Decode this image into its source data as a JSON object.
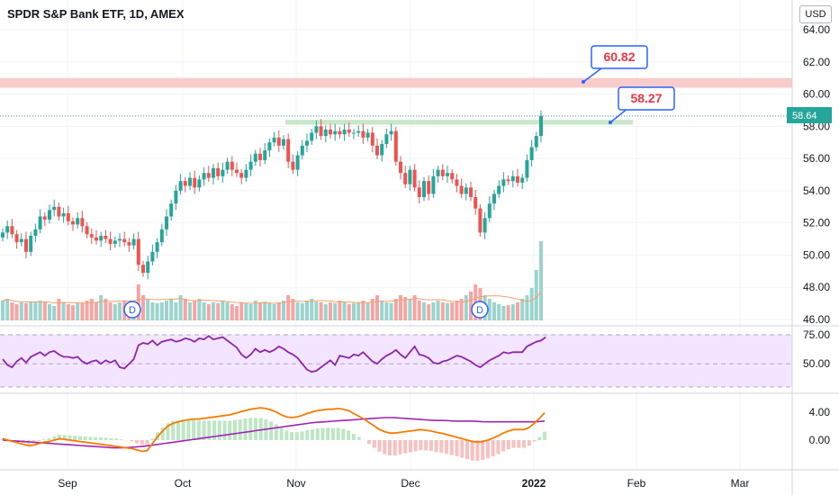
{
  "header": {
    "title": "SPDR S&P Bank ETF, 1D, AMEX",
    "currency_button": "USD"
  },
  "annotations": {
    "resistance_label": "60.82",
    "target_label": "58.27",
    "last_price_label": "58.64",
    "dividend_marker": "D"
  },
  "colors": {
    "up": "#26a69a",
    "down": "#ef5350",
    "resistance_band": "#f9cccc",
    "support_band": "#c8e6c9",
    "rsi_band": "#f3e5ff",
    "rsi_line": "#8e24aa",
    "macd_line": "#f57c00",
    "signal_line": "#9c27b0",
    "callout_border": "#2962ff",
    "callout_text": "#f23645"
  },
  "chart_data": [
    {
      "type": "candlestick",
      "x_labels": [
        "Sep",
        "Oct",
        "Nov",
        "Dec",
        "2022",
        "Feb",
        "Mar"
      ],
      "y_ticks": [
        "64.00",
        "62.00",
        "60.00",
        "58.00",
        "56.00",
        "54.00",
        "52.00",
        "50.00",
        "48.00",
        "46.00"
      ],
      "ylim": [
        46,
        65
      ],
      "closes": [
        51.4,
        51.8,
        51.3,
        50.8,
        51.0,
        50.2,
        51.2,
        51.6,
        52.4,
        52.2,
        52.8,
        53.0,
        52.4,
        52.6,
        52.1,
        51.9,
        52.3,
        51.8,
        51.3,
        51.1,
        50.9,
        51.2,
        51.0,
        50.7,
        50.9,
        51.0,
        50.8,
        50.6,
        51.0,
        49.4,
        48.9,
        49.6,
        50.2,
        50.8,
        51.6,
        52.4,
        53.2,
        54.0,
        54.6,
        54.3,
        54.8,
        54.2,
        54.7,
        55.1,
        54.8,
        55.4,
        54.9,
        55.3,
        55.8,
        55.3,
        55.1,
        54.8,
        55.3,
        55.8,
        56.3,
        55.9,
        56.5,
        57.0,
        57.3,
        56.8,
        57.2,
        55.8,
        55.3,
        56.2,
        56.8,
        57.1,
        57.6,
        58.0,
        57.4,
        57.8,
        57.5,
        57.7,
        57.5,
        57.8,
        57.6,
        57.6,
        57.7,
        57.3,
        57.6,
        56.8,
        56.2,
        56.9,
        57.5,
        57.7,
        55.8,
        55.1,
        54.4,
        55.3,
        54.2,
        53.6,
        54.6,
        53.8,
        54.9,
        55.3,
        54.9,
        55.1,
        54.7,
        54.3,
        53.8,
        54.2,
        53.6,
        52.9,
        51.4,
        52.3,
        53.2,
        53.8,
        54.3,
        54.7,
        54.6,
        54.9,
        54.5,
        54.8,
        55.9,
        56.7,
        57.4,
        58.64
      ],
      "last_price": 58.64,
      "resistance": 60.82,
      "support": 58.27
    },
    {
      "type": "bar",
      "name": "volume",
      "values": [
        0.55,
        0.6,
        0.5,
        0.45,
        0.5,
        0.48,
        0.52,
        0.5,
        0.55,
        0.5,
        0.45,
        0.4,
        0.6,
        0.5,
        0.45,
        0.42,
        0.5,
        0.48,
        0.55,
        0.6,
        0.5,
        0.7,
        0.6,
        0.5,
        0.45,
        0.5,
        0.55,
        0.48,
        0.52,
        1.0,
        0.7,
        0.6,
        0.5,
        0.48,
        0.5,
        0.55,
        0.6,
        0.5,
        0.7,
        0.6,
        0.5,
        0.55,
        0.6,
        0.5,
        0.45,
        0.5,
        0.48,
        0.55,
        0.5,
        0.45,
        0.4,
        0.5,
        0.48,
        0.45,
        0.55,
        0.5,
        0.52,
        0.48,
        0.45,
        0.5,
        0.55,
        0.7,
        0.6,
        0.5,
        0.48,
        0.55,
        0.6,
        0.52,
        0.5,
        0.45,
        0.5,
        0.48,
        0.55,
        0.5,
        0.45,
        0.48,
        0.5,
        0.55,
        0.5,
        0.6,
        0.7,
        0.55,
        0.5,
        0.48,
        0.6,
        0.7,
        0.65,
        0.6,
        0.7,
        0.55,
        0.5,
        0.45,
        0.5,
        0.55,
        0.5,
        0.48,
        0.5,
        0.55,
        0.6,
        0.7,
        0.8,
        1.0,
        0.9,
        0.7,
        0.6,
        0.5,
        0.45,
        0.4,
        0.42,
        0.45,
        0.5,
        0.6,
        0.7,
        0.9,
        1.4,
        2.2
      ],
      "dividend_markers": [
        "D",
        "D"
      ]
    },
    {
      "type": "line",
      "name": "RSI",
      "y_ticks": [
        "75.00",
        "50.00"
      ],
      "ylim": [
        25,
        80
      ],
      "values": [
        54,
        49,
        47,
        52,
        55,
        51,
        56,
        58,
        60,
        57,
        60,
        61,
        58,
        56,
        56,
        55,
        56,
        52,
        50,
        52,
        53,
        50,
        53,
        51,
        53,
        47,
        46,
        50,
        54,
        66,
        68,
        67,
        70,
        66,
        69,
        70,
        71,
        69,
        70,
        72,
        71,
        69,
        72,
        71,
        74,
        71,
        72,
        73,
        70,
        67,
        64,
        58,
        55,
        58,
        63,
        60,
        62,
        60,
        62,
        65,
        63,
        60,
        58,
        55,
        50,
        45,
        43,
        44,
        47,
        50,
        53,
        49,
        57,
        56,
        55,
        58,
        57,
        60,
        56,
        52,
        50,
        54,
        57,
        59,
        62,
        58,
        55,
        60,
        65,
        58,
        57,
        55,
        51,
        50,
        52,
        53,
        55,
        57,
        56,
        54,
        52,
        49,
        47,
        50,
        53,
        55,
        57,
        60,
        59,
        60,
        60,
        60,
        65,
        67,
        69,
        70,
        73
      ],
      "levels": [
        75,
        50,
        30
      ]
    },
    {
      "type": "line",
      "name": "MACD",
      "y_ticks": [
        "4.00",
        "0.00"
      ],
      "macd": [
        0.2,
        0.0,
        -0.2,
        -0.4,
        -0.6,
        -0.8,
        -0.7,
        -0.5,
        -0.3,
        -0.2,
        0.0,
        0.2,
        0.1,
        0.0,
        -0.1,
        -0.2,
        -0.3,
        -0.4,
        -0.5,
        -0.6,
        -0.7,
        -0.8,
        -0.9,
        -1.0,
        -1.1,
        -1.2,
        -1.4,
        -1.6,
        -1.5,
        -0.5,
        0.5,
        1.3,
        2.0,
        2.4,
        2.6,
        2.8,
        2.9,
        3.0,
        3.0,
        3.1,
        3.2,
        3.3,
        3.4,
        3.5,
        3.6,
        3.8,
        4.0,
        4.2,
        4.4,
        4.5,
        4.6,
        4.5,
        4.3,
        4.0,
        3.6,
        3.3,
        3.2,
        3.3,
        3.5,
        3.8,
        4.0,
        4.2,
        4.3,
        4.4,
        4.4,
        4.5,
        4.4,
        4.2,
        3.8,
        3.4,
        3.0,
        2.5,
        2.0,
        1.5,
        1.2,
        1.0,
        1.0,
        1.1,
        1.2,
        1.3,
        1.4,
        1.5,
        1.4,
        1.3,
        1.1,
        1.0,
        0.8,
        0.6,
        0.4,
        0.2,
        0.0,
        -0.2,
        -0.3,
        -0.2,
        0.0,
        0.3,
        0.6,
        1.0,
        1.3,
        1.5,
        1.5,
        1.5,
        1.8,
        2.4,
        3.1,
        3.9
      ],
      "signal": [
        0.0,
        -0.1,
        -0.2,
        -0.3,
        -0.4,
        -0.5,
        -0.6,
        -0.7,
        -0.8,
        -0.9,
        -1.0,
        -1.1,
        -1.1,
        -1.0,
        -0.9,
        -0.7,
        -0.5,
        -0.3,
        -0.1,
        0.1,
        0.3,
        0.5,
        0.7,
        0.9,
        1.1,
        1.3,
        1.5,
        1.7,
        1.9,
        2.1,
        2.3,
        2.5,
        2.6,
        2.7,
        2.8,
        2.9,
        3.0,
        3.1,
        3.2,
        3.2,
        3.1,
        3.0,
        2.9,
        2.8,
        2.8,
        2.7,
        2.7,
        2.7,
        2.6,
        2.6,
        2.6,
        2.6,
        2.6,
        2.6,
        2.7
      ],
      "levels": [
        0
      ]
    }
  ]
}
